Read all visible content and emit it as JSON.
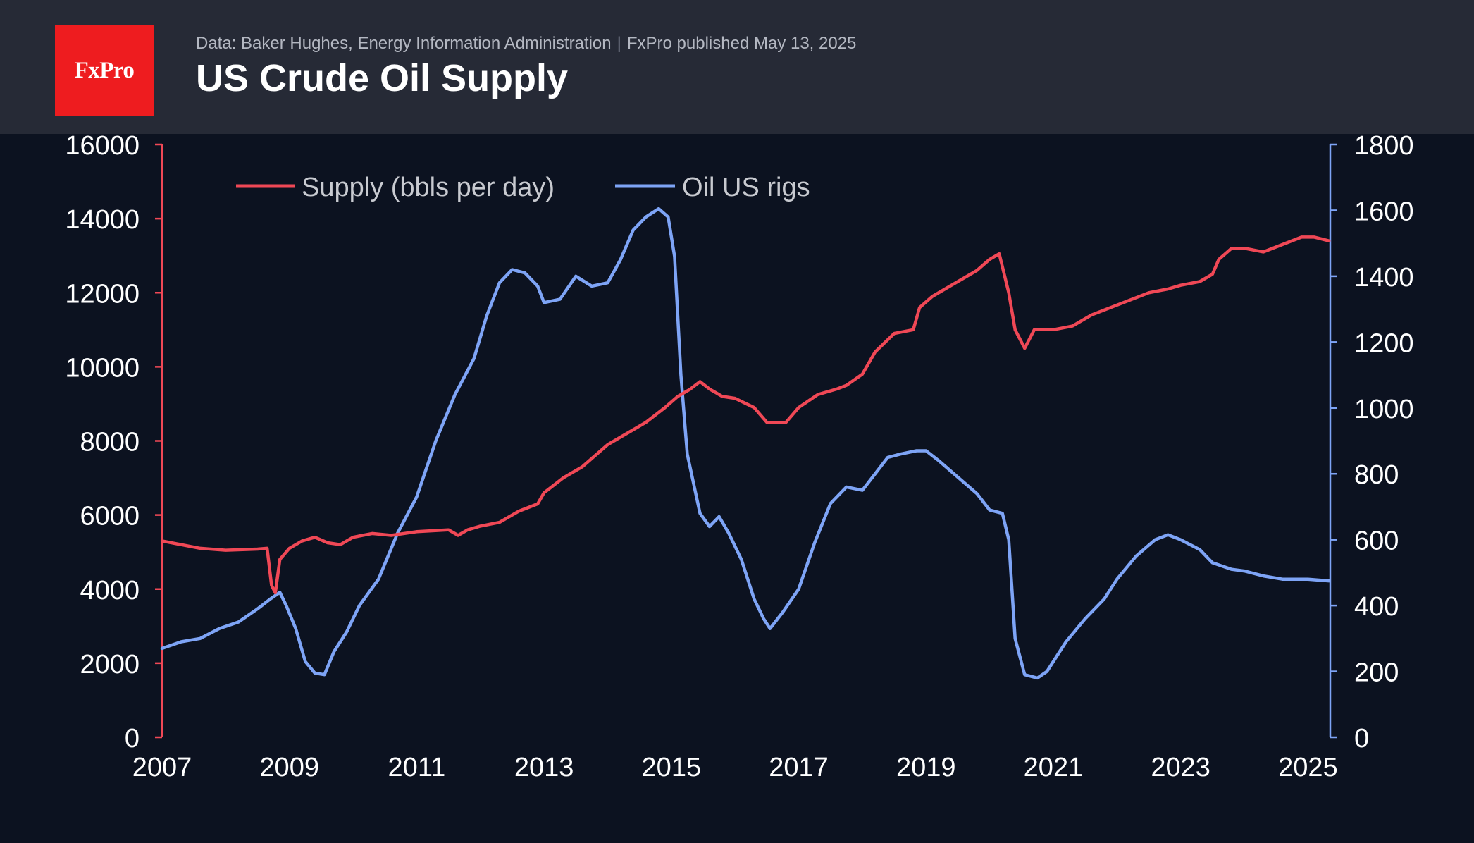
{
  "header": {
    "logo_text": "FxPro",
    "source_text": "Data: Baker Hughes, Energy Information Administration",
    "separator": "|",
    "published_text": "FxPro published May 13, 2025",
    "title": "US Crude Oil Supply"
  },
  "colors": {
    "background": "#0c1220",
    "header_bg": "#262a36",
    "logo_bg": "#ee1c1f",
    "supply": "#f04856",
    "rigs": "#7ea4f6",
    "axis_text": "#ffffff",
    "legend_text": "#c8cad0"
  },
  "chart_data": {
    "type": "line",
    "title": "US Crude Oil Supply",
    "x_ticks": [
      "2007",
      "2009",
      "2011",
      "2013",
      "2015",
      "2017",
      "2019",
      "2021",
      "2023",
      "2025"
    ],
    "xlim": [
      2007.0,
      2025.35
    ],
    "y_left": {
      "label": "",
      "ticks": [
        0,
        2000,
        4000,
        6000,
        8000,
        10000,
        12000,
        14000,
        16000
      ],
      "ylim": [
        0,
        16000
      ]
    },
    "y_right": {
      "label": "",
      "ticks": [
        0,
        200,
        400,
        600,
        800,
        1000,
        1200,
        1400,
        1600,
        1800
      ],
      "ylim": [
        0,
        1800
      ]
    },
    "legend": {
      "position": "top-left"
    },
    "grid": false,
    "series": [
      {
        "name": "Supply (bbls per day)",
        "axis": "left",
        "color": "#f04856",
        "points": [
          [
            2007.0,
            5300
          ],
          [
            2007.3,
            5200
          ],
          [
            2007.6,
            5100
          ],
          [
            2008.0,
            5050
          ],
          [
            2008.5,
            5080
          ],
          [
            2008.65,
            5100
          ],
          [
            2008.72,
            4100
          ],
          [
            2008.78,
            3900
          ],
          [
            2008.85,
            4800
          ],
          [
            2009.0,
            5100
          ],
          [
            2009.2,
            5300
          ],
          [
            2009.4,
            5400
          ],
          [
            2009.6,
            5250
          ],
          [
            2009.8,
            5200
          ],
          [
            2010.0,
            5400
          ],
          [
            2010.3,
            5500
          ],
          [
            2010.6,
            5450
          ],
          [
            2011.0,
            5550
          ],
          [
            2011.5,
            5600
          ],
          [
            2011.65,
            5450
          ],
          [
            2011.8,
            5600
          ],
          [
            2012.0,
            5700
          ],
          [
            2012.3,
            5800
          ],
          [
            2012.6,
            6100
          ],
          [
            2012.9,
            6300
          ],
          [
            2013.0,
            6600
          ],
          [
            2013.3,
            7000
          ],
          [
            2013.6,
            7300
          ],
          [
            2014.0,
            7900
          ],
          [
            2014.3,
            8200
          ],
          [
            2014.6,
            8500
          ],
          [
            2014.9,
            8900
          ],
          [
            2015.1,
            9200
          ],
          [
            2015.3,
            9400
          ],
          [
            2015.45,
            9600
          ],
          [
            2015.6,
            9400
          ],
          [
            2015.8,
            9200
          ],
          [
            2016.0,
            9150
          ],
          [
            2016.3,
            8900
          ],
          [
            2016.5,
            8500
          ],
          [
            2016.8,
            8500
          ],
          [
            2017.0,
            8900
          ],
          [
            2017.3,
            9250
          ],
          [
            2017.6,
            9400
          ],
          [
            2017.75,
            9500
          ],
          [
            2018.0,
            9800
          ],
          [
            2018.2,
            10400
          ],
          [
            2018.5,
            10900
          ],
          [
            2018.8,
            11000
          ],
          [
            2018.9,
            11600
          ],
          [
            2019.1,
            11900
          ],
          [
            2019.4,
            12200
          ],
          [
            2019.6,
            12400
          ],
          [
            2019.8,
            12600
          ],
          [
            2020.0,
            12900
          ],
          [
            2020.15,
            13050
          ],
          [
            2020.3,
            12000
          ],
          [
            2020.4,
            11000
          ],
          [
            2020.55,
            10500
          ],
          [
            2020.7,
            11000
          ],
          [
            2021.0,
            11000
          ],
          [
            2021.3,
            11100
          ],
          [
            2021.6,
            11400
          ],
          [
            2021.9,
            11600
          ],
          [
            2022.2,
            11800
          ],
          [
            2022.5,
            12000
          ],
          [
            2022.8,
            12100
          ],
          [
            2023.0,
            12200
          ],
          [
            2023.3,
            12300
          ],
          [
            2023.5,
            12500
          ],
          [
            2023.6,
            12900
          ],
          [
            2023.8,
            13200
          ],
          [
            2024.0,
            13200
          ],
          [
            2024.3,
            13100
          ],
          [
            2024.6,
            13300
          ],
          [
            2024.9,
            13500
          ],
          [
            2025.1,
            13500
          ],
          [
            2025.33,
            13400
          ]
        ]
      },
      {
        "name": "Oil US rigs",
        "axis": "right",
        "color": "#7ea4f6",
        "points": [
          [
            2007.0,
            270
          ],
          [
            2007.3,
            290
          ],
          [
            2007.6,
            300
          ],
          [
            2007.9,
            330
          ],
          [
            2008.2,
            350
          ],
          [
            2008.5,
            390
          ],
          [
            2008.7,
            420
          ],
          [
            2008.85,
            440
          ],
          [
            2008.95,
            400
          ],
          [
            2009.1,
            330
          ],
          [
            2009.25,
            230
          ],
          [
            2009.4,
            195
          ],
          [
            2009.55,
            190
          ],
          [
            2009.7,
            260
          ],
          [
            2009.9,
            320
          ],
          [
            2010.1,
            400
          ],
          [
            2010.4,
            480
          ],
          [
            2010.7,
            620
          ],
          [
            2011.0,
            730
          ],
          [
            2011.3,
            900
          ],
          [
            2011.6,
            1040
          ],
          [
            2011.9,
            1150
          ],
          [
            2012.1,
            1280
          ],
          [
            2012.3,
            1380
          ],
          [
            2012.5,
            1420
          ],
          [
            2012.7,
            1410
          ],
          [
            2012.9,
            1370
          ],
          [
            2013.0,
            1320
          ],
          [
            2013.25,
            1330
          ],
          [
            2013.5,
            1400
          ],
          [
            2013.75,
            1370
          ],
          [
            2014.0,
            1380
          ],
          [
            2014.2,
            1450
          ],
          [
            2014.4,
            1540
          ],
          [
            2014.6,
            1580
          ],
          [
            2014.8,
            1605
          ],
          [
            2014.95,
            1580
          ],
          [
            2015.05,
            1460
          ],
          [
            2015.15,
            1100
          ],
          [
            2015.25,
            860
          ],
          [
            2015.45,
            680
          ],
          [
            2015.6,
            640
          ],
          [
            2015.75,
            670
          ],
          [
            2015.9,
            620
          ],
          [
            2016.1,
            540
          ],
          [
            2016.3,
            420
          ],
          [
            2016.45,
            360
          ],
          [
            2016.55,
            330
          ],
          [
            2016.75,
            380
          ],
          [
            2017.0,
            450
          ],
          [
            2017.25,
            590
          ],
          [
            2017.5,
            710
          ],
          [
            2017.75,
            760
          ],
          [
            2018.0,
            750
          ],
          [
            2018.2,
            800
          ],
          [
            2018.4,
            850
          ],
          [
            2018.6,
            860
          ],
          [
            2018.85,
            870
          ],
          [
            2019.0,
            870
          ],
          [
            2019.2,
            840
          ],
          [
            2019.5,
            790
          ],
          [
            2019.8,
            740
          ],
          [
            2020.0,
            690
          ],
          [
            2020.2,
            680
          ],
          [
            2020.3,
            600
          ],
          [
            2020.4,
            300
          ],
          [
            2020.55,
            190
          ],
          [
            2020.75,
            180
          ],
          [
            2020.9,
            200
          ],
          [
            2021.2,
            290
          ],
          [
            2021.5,
            360
          ],
          [
            2021.8,
            420
          ],
          [
            2022.0,
            480
          ],
          [
            2022.3,
            550
          ],
          [
            2022.6,
            600
          ],
          [
            2022.8,
            615
          ],
          [
            2023.0,
            600
          ],
          [
            2023.3,
            570
          ],
          [
            2023.5,
            530
          ],
          [
            2023.8,
            510
          ],
          [
            2024.0,
            505
          ],
          [
            2024.3,
            490
          ],
          [
            2024.6,
            480
          ],
          [
            2025.0,
            480
          ],
          [
            2025.33,
            475
          ]
        ]
      }
    ]
  }
}
